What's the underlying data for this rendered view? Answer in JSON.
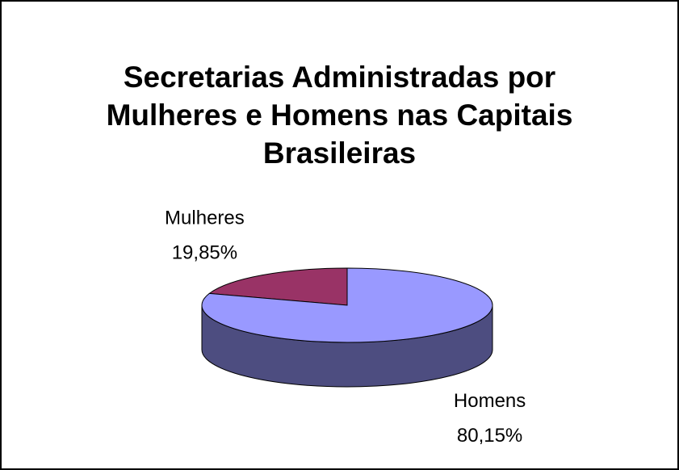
{
  "chart_data": {
    "type": "pie",
    "title": "Secretarias Administradas por Mulheres e Homens nas Capitais Brasileiras",
    "categories": [
      "Mulheres",
      "Homens"
    ],
    "values": [
      19.85,
      80.15
    ],
    "value_labels": [
      "19,85%",
      "80,15%"
    ],
    "colors": [
      "#993366",
      "#9999ff"
    ]
  }
}
